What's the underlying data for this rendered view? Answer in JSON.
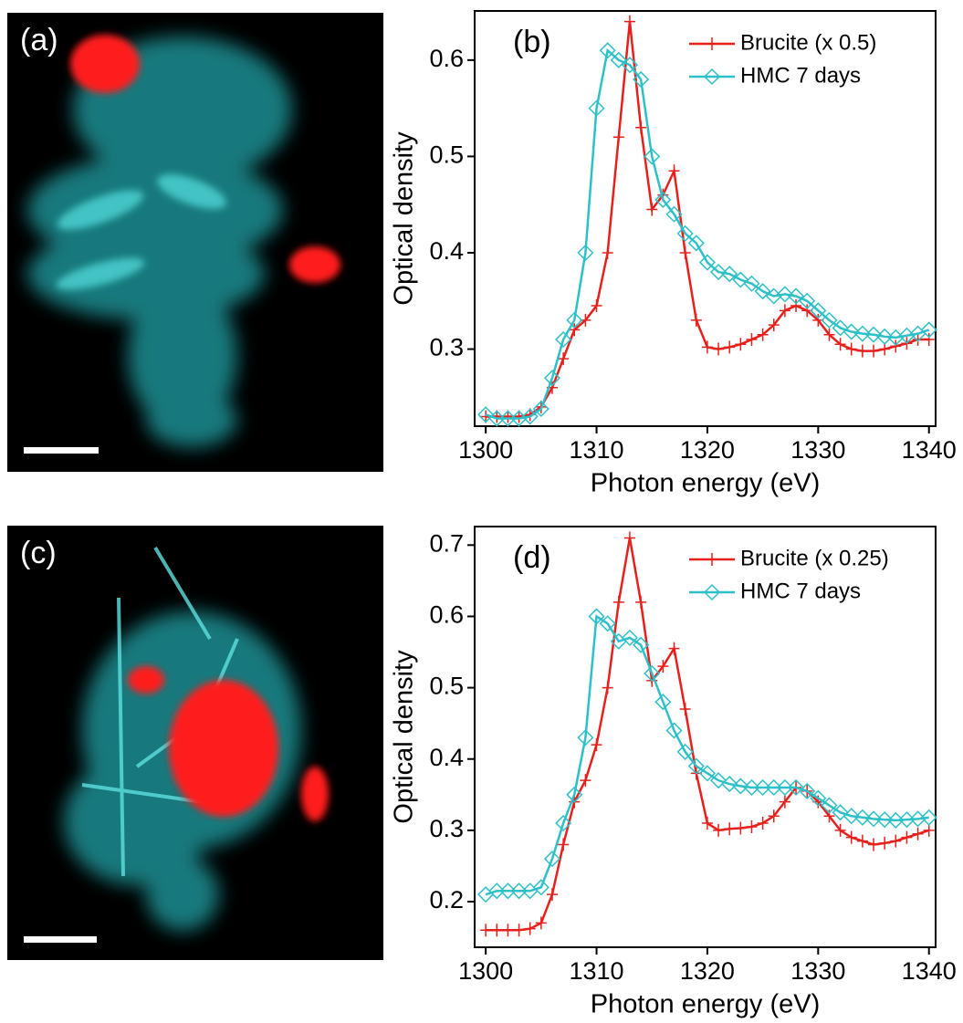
{
  "images": [
    {
      "label": "(a)"
    },
    {
      "label": "(c)"
    }
  ],
  "chart_data": [
    {
      "type": "line",
      "panel_label": "(b)",
      "x_label": "Photon energy (eV)",
      "y_label": "Optical density",
      "legend": "upper right",
      "xlim": [
        1299,
        1340.6
      ],
      "ylim": [
        0.22,
        0.651
      ],
      "xticks": [
        1300,
        1310,
        1320,
        1330,
        1340
      ],
      "yticks": [
        0.3,
        0.4,
        0.5,
        0.6
      ],
      "x": [
        1300,
        1301,
        1302,
        1303,
        1304,
        1305,
        1306,
        1307,
        1308,
        1309,
        1310,
        1311,
        1312,
        1313,
        1314,
        1315,
        1316,
        1317,
        1318,
        1319,
        1320,
        1321,
        1322,
        1323,
        1324,
        1325,
        1326,
        1327,
        1328,
        1329,
        1330,
        1331,
        1332,
        1333,
        1334,
        1335,
        1336,
        1337,
        1338,
        1339,
        1340
      ],
      "series": [
        {
          "name": "Brucite (x 0.5)",
          "color": "#e8201c",
          "marker": "plus",
          "values": [
            0.23,
            0.23,
            0.23,
            0.23,
            0.232,
            0.24,
            0.26,
            0.29,
            0.32,
            0.33,
            0.345,
            0.4,
            0.52,
            0.64,
            0.53,
            0.445,
            0.46,
            0.485,
            0.4,
            0.33,
            0.302,
            0.3,
            0.302,
            0.305,
            0.31,
            0.315,
            0.325,
            0.34,
            0.345,
            0.34,
            0.33,
            0.315,
            0.305,
            0.3,
            0.298,
            0.298,
            0.3,
            0.303,
            0.306,
            0.31,
            0.31
          ]
        },
        {
          "name": "HMC 7 days",
          "color": "#2cc0c8",
          "marker": "diamond",
          "values": [
            0.232,
            0.228,
            0.228,
            0.228,
            0.23,
            0.238,
            0.27,
            0.31,
            0.33,
            0.4,
            0.55,
            0.61,
            0.6,
            0.595,
            0.58,
            0.5,
            0.455,
            0.44,
            0.42,
            0.41,
            0.39,
            0.38,
            0.378,
            0.372,
            0.368,
            0.36,
            0.355,
            0.357,
            0.355,
            0.35,
            0.34,
            0.33,
            0.322,
            0.318,
            0.316,
            0.315,
            0.313,
            0.312,
            0.314,
            0.316,
            0.32
          ]
        }
      ]
    },
    {
      "type": "line",
      "panel_label": "(d)",
      "x_label": "Photon energy (eV)",
      "y_label": "Optical density",
      "legend": "upper right",
      "xlim": [
        1299,
        1340.6
      ],
      "ylim": [
        0.136,
        0.726
      ],
      "xticks": [
        1300,
        1310,
        1320,
        1330,
        1340
      ],
      "yticks": [
        0.2,
        0.3,
        0.4,
        0.5,
        0.6,
        0.7
      ],
      "x": [
        1300,
        1301,
        1302,
        1303,
        1304,
        1305,
        1306,
        1307,
        1308,
        1309,
        1310,
        1311,
        1312,
        1313,
        1314,
        1315,
        1316,
        1317,
        1318,
        1319,
        1320,
        1321,
        1322,
        1323,
        1324,
        1325,
        1326,
        1327,
        1328,
        1329,
        1330,
        1331,
        1332,
        1333,
        1334,
        1335,
        1336,
        1337,
        1338,
        1339,
        1340
      ],
      "series": [
        {
          "name": "Brucite (x 0.25)",
          "color": "#e8201c",
          "marker": "plus",
          "values": [
            0.16,
            0.16,
            0.16,
            0.16,
            0.162,
            0.17,
            0.21,
            0.28,
            0.34,
            0.37,
            0.42,
            0.5,
            0.62,
            0.71,
            0.62,
            0.51,
            0.53,
            0.555,
            0.47,
            0.38,
            0.31,
            0.3,
            0.302,
            0.303,
            0.305,
            0.31,
            0.32,
            0.34,
            0.36,
            0.355,
            0.34,
            0.32,
            0.3,
            0.29,
            0.285,
            0.28,
            0.282,
            0.285,
            0.29,
            0.295,
            0.3
          ]
        },
        {
          "name": "HMC 7 days",
          "color": "#2cc0c8",
          "marker": "diamond",
          "values": [
            0.21,
            0.215,
            0.215,
            0.215,
            0.215,
            0.22,
            0.26,
            0.31,
            0.35,
            0.43,
            0.6,
            0.59,
            0.565,
            0.57,
            0.56,
            0.52,
            0.48,
            0.44,
            0.41,
            0.39,
            0.38,
            0.37,
            0.365,
            0.362,
            0.36,
            0.36,
            0.36,
            0.36,
            0.36,
            0.355,
            0.345,
            0.335,
            0.325,
            0.32,
            0.318,
            0.316,
            0.315,
            0.314,
            0.315,
            0.316,
            0.318
          ]
        }
      ]
    }
  ]
}
